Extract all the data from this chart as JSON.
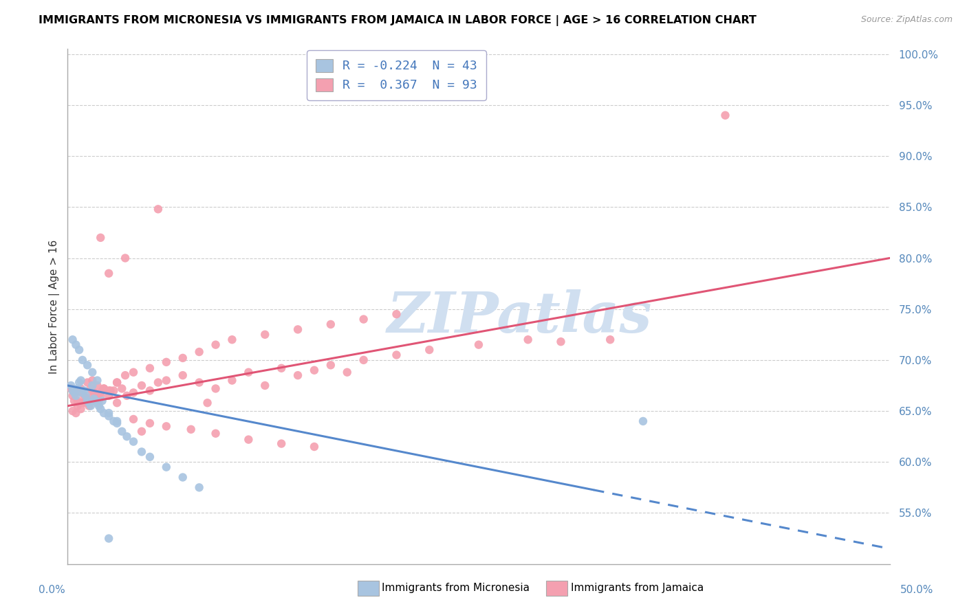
{
  "title": "IMMIGRANTS FROM MICRONESIA VS IMMIGRANTS FROM JAMAICA IN LABOR FORCE | AGE > 16 CORRELATION CHART",
  "source": "Source: ZipAtlas.com",
  "ylabel": "In Labor Force | Age > 16",
  "ylim": [
    0.5,
    1.005
  ],
  "xlim": [
    0.0,
    0.5
  ],
  "yticks": [
    0.55,
    0.6,
    0.65,
    0.7,
    0.75,
    0.8,
    0.85,
    0.9,
    0.95,
    1.0
  ],
  "ytick_labels": [
    "55.0%",
    "60.0%",
    "65.0%",
    "70.0%",
    "75.0%",
    "80.0%",
    "85.0%",
    "90.0%",
    "95.0%",
    "100.0%"
  ],
  "legend_R_blue": "-0.224",
  "legend_N_blue": "43",
  "legend_R_pink": "0.367",
  "legend_N_pink": "93",
  "blue_color": "#a8c4e0",
  "pink_color": "#f4a0b0",
  "blue_line_color": "#5588cc",
  "pink_line_color": "#e05575",
  "watermark": "ZIPatlas",
  "watermark_color": "#d0dff0",
  "blue_scatter_x": [
    0.002,
    0.003,
    0.004,
    0.005,
    0.006,
    0.007,
    0.008,
    0.009,
    0.01,
    0.011,
    0.012,
    0.013,
    0.014,
    0.015,
    0.016,
    0.017,
    0.018,
    0.019,
    0.02,
    0.022,
    0.025,
    0.028,
    0.03,
    0.033,
    0.036,
    0.04,
    0.045,
    0.05,
    0.06,
    0.07,
    0.08,
    0.003,
    0.005,
    0.007,
    0.009,
    0.012,
    0.015,
    0.018,
    0.021,
    0.025,
    0.03,
    0.35,
    0.025
  ],
  "blue_scatter_y": [
    0.675,
    0.67,
    0.668,
    0.665,
    0.672,
    0.678,
    0.68,
    0.668,
    0.67,
    0.665,
    0.66,
    0.658,
    0.655,
    0.675,
    0.662,
    0.66,
    0.658,
    0.655,
    0.652,
    0.648,
    0.645,
    0.64,
    0.638,
    0.63,
    0.625,
    0.62,
    0.61,
    0.605,
    0.595,
    0.585,
    0.575,
    0.72,
    0.715,
    0.71,
    0.7,
    0.695,
    0.688,
    0.68,
    0.66,
    0.648,
    0.64,
    0.64,
    0.525
  ],
  "pink_scatter_x": [
    0.002,
    0.003,
    0.004,
    0.005,
    0.006,
    0.007,
    0.008,
    0.009,
    0.01,
    0.011,
    0.012,
    0.013,
    0.014,
    0.015,
    0.016,
    0.017,
    0.018,
    0.019,
    0.02,
    0.022,
    0.025,
    0.028,
    0.03,
    0.033,
    0.036,
    0.04,
    0.045,
    0.05,
    0.055,
    0.06,
    0.07,
    0.08,
    0.09,
    0.1,
    0.11,
    0.12,
    0.13,
    0.14,
    0.15,
    0.16,
    0.17,
    0.18,
    0.2,
    0.22,
    0.25,
    0.28,
    0.3,
    0.004,
    0.006,
    0.009,
    0.012,
    0.015,
    0.018,
    0.022,
    0.026,
    0.03,
    0.035,
    0.04,
    0.05,
    0.06,
    0.07,
    0.08,
    0.09,
    0.1,
    0.12,
    0.14,
    0.16,
    0.18,
    0.2,
    0.003,
    0.005,
    0.008,
    0.011,
    0.015,
    0.02,
    0.025,
    0.03,
    0.04,
    0.05,
    0.06,
    0.075,
    0.09,
    0.11,
    0.13,
    0.15,
    0.02,
    0.035,
    0.055,
    0.33,
    0.4,
    0.025,
    0.045,
    0.085
  ],
  "pink_scatter_y": [
    0.672,
    0.665,
    0.67,
    0.668,
    0.66,
    0.658,
    0.672,
    0.668,
    0.665,
    0.66,
    0.678,
    0.655,
    0.672,
    0.68,
    0.668,
    0.662,
    0.675,
    0.66,
    0.668,
    0.672,
    0.665,
    0.67,
    0.678,
    0.672,
    0.665,
    0.668,
    0.675,
    0.67,
    0.678,
    0.68,
    0.685,
    0.678,
    0.672,
    0.68,
    0.688,
    0.675,
    0.692,
    0.685,
    0.69,
    0.695,
    0.688,
    0.7,
    0.705,
    0.71,
    0.715,
    0.72,
    0.718,
    0.66,
    0.655,
    0.658,
    0.662,
    0.668,
    0.665,
    0.672,
    0.67,
    0.678,
    0.685,
    0.688,
    0.692,
    0.698,
    0.702,
    0.708,
    0.715,
    0.72,
    0.725,
    0.73,
    0.735,
    0.74,
    0.745,
    0.65,
    0.648,
    0.652,
    0.658,
    0.66,
    0.665,
    0.67,
    0.658,
    0.642,
    0.638,
    0.635,
    0.632,
    0.628,
    0.622,
    0.618,
    0.615,
    0.82,
    0.8,
    0.848,
    0.72,
    0.94,
    0.785,
    0.63,
    0.658
  ]
}
